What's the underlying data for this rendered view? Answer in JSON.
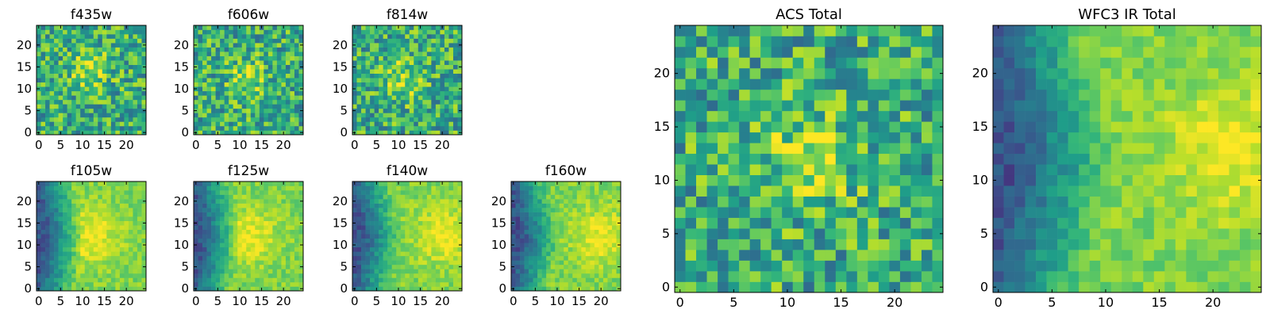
{
  "chart_data": [
    {
      "type": "heatmap",
      "title": "f435w",
      "xticks": [
        "0",
        "5",
        "10",
        "15",
        "20"
      ],
      "yticks": [
        "0",
        "5",
        "10",
        "15",
        "20"
      ],
      "xlim": [
        -0.5,
        24.5
      ],
      "ylim": [
        -0.5,
        24.5
      ],
      "colormap": "viridis",
      "grid": false,
      "centroid": [
        12,
        14
      ],
      "description_level": "noisy, mostly uniform high values"
    },
    {
      "type": "heatmap",
      "title": "f606w",
      "xticks": [
        "0",
        "5",
        "10",
        "15",
        "20"
      ],
      "yticks": [
        "0",
        "5",
        "10",
        "15",
        "20"
      ],
      "xlim": [
        -0.5,
        24.5
      ],
      "ylim": [
        -0.5,
        24.5
      ],
      "colormap": "viridis",
      "grid": false,
      "centroid": [
        12,
        12
      ]
    },
    {
      "type": "heatmap",
      "title": "f814w",
      "xticks": [
        "0",
        "5",
        "10",
        "15",
        "20"
      ],
      "yticks": [
        "0",
        "5",
        "10",
        "15",
        "20"
      ],
      "xlim": [
        -0.5,
        24.5
      ],
      "ylim": [
        -0.5,
        24.5
      ],
      "colormap": "viridis",
      "grid": false,
      "centroid": [
        11,
        12
      ]
    },
    {
      "type": "heatmap",
      "title": "f105w",
      "xticks": [
        "0",
        "5",
        "10",
        "15",
        "20"
      ],
      "yticks": [
        "0",
        "5",
        "10",
        "15",
        "20"
      ],
      "xlim": [
        -0.5,
        24.5
      ],
      "ylim": [
        -0.5,
        24.5
      ],
      "colormap": "viridis",
      "grid": false,
      "centroid": [
        12,
        12
      ]
    },
    {
      "type": "heatmap",
      "title": "f125w",
      "xticks": [
        "0",
        "5",
        "10",
        "15",
        "20"
      ],
      "yticks": [
        "0",
        "5",
        "10",
        "15",
        "20"
      ],
      "xlim": [
        -0.5,
        24.5
      ],
      "ylim": [
        -0.5,
        24.5
      ],
      "colormap": "viridis",
      "grid": false,
      "centroid": [
        12,
        12
      ]
    },
    {
      "type": "heatmap",
      "title": "f140w",
      "xticks": [
        "0",
        "5",
        "10",
        "15",
        "20"
      ],
      "yticks": [
        "0",
        "5",
        "10",
        "15",
        "20"
      ],
      "xlim": [
        -0.5,
        24.5
      ],
      "ylim": [
        -0.5,
        24.5
      ],
      "colormap": "viridis",
      "grid": false,
      "centroid": [
        20,
        12
      ]
    },
    {
      "type": "heatmap",
      "title": "f160w",
      "xticks": [
        "0",
        "5",
        "10",
        "15",
        "20"
      ],
      "yticks": [
        "0",
        "5",
        "10",
        "15",
        "20"
      ],
      "xlim": [
        -0.5,
        24.5
      ],
      "ylim": [
        -0.5,
        24.5
      ],
      "colormap": "viridis",
      "grid": false,
      "centroid": [
        20,
        12
      ]
    },
    {
      "type": "heatmap",
      "title": "ACS Total",
      "xticks": [
        "0",
        "5",
        "10",
        "15",
        "20"
      ],
      "yticks": [
        "0",
        "5",
        "10",
        "15",
        "20"
      ],
      "xlim": [
        -0.5,
        24.5
      ],
      "ylim": [
        -0.5,
        24.5
      ],
      "colormap": "viridis",
      "grid": false,
      "centroid": [
        12,
        12
      ]
    },
    {
      "type": "heatmap",
      "title": "WFC3 IR Total",
      "xticks": [
        "0",
        "5",
        "10",
        "15",
        "20"
      ],
      "yticks": [
        "0",
        "5",
        "10",
        "15",
        "20"
      ],
      "xlim": [
        -0.5,
        24.5
      ],
      "ylim": [
        -0.5,
        24.5
      ],
      "colormap": "viridis",
      "grid": false,
      "centroid": [
        22,
        13
      ]
    }
  ]
}
